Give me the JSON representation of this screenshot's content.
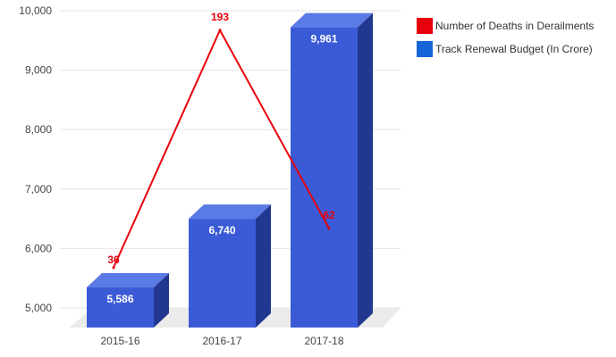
{
  "chart_data": {
    "type": "bar",
    "categories": [
      "2015-16",
      "2016-17",
      "2017-18"
    ],
    "ylim": [
      5000,
      10000
    ],
    "yticks": [
      5000,
      6000,
      7000,
      8000,
      9000,
      10000
    ],
    "ytick_labels": [
      "5,000",
      "6,000",
      "7,000",
      "8,000",
      "9,000",
      "10,000"
    ],
    "three_d": true,
    "grid": true,
    "legend_position": "top-right",
    "series": [
      {
        "name": "Track Renewal Budget (In Crore)",
        "kind": "bar",
        "color": "#3b5bd6",
        "values": [
          5586,
          6740,
          9961
        ],
        "labels": [
          "5,586",
          "6,740",
          "9,961"
        ]
      },
      {
        "name": "Number of Deaths in Derailments",
        "kind": "line",
        "color": "#e8000b",
        "values": [
          36,
          193,
          62
        ],
        "labels": [
          "36",
          "193",
          "62"
        ],
        "ylim": [
          20,
          200
        ]
      }
    ]
  },
  "legend": {
    "items": [
      {
        "label": "Number of Deaths in Derailments",
        "color": "#e8000b"
      },
      {
        "label": "Track Renewal Budget (In Crore)",
        "color": "#1565d8"
      }
    ]
  }
}
